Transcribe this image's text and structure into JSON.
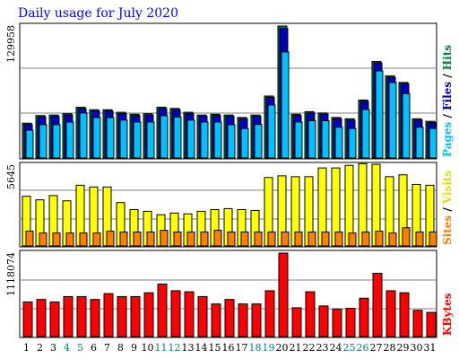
{
  "chart_data": {
    "type": "bar",
    "title": "Daily usage for July 2020",
    "categories": [
      "1",
      "2",
      "3",
      "4",
      "5",
      "6",
      "7",
      "8",
      "9",
      "10",
      "11",
      "12",
      "13",
      "14",
      "15",
      "16",
      "17",
      "18",
      "19",
      "20",
      "21",
      "22",
      "23",
      "24",
      "25",
      "26",
      "27",
      "28",
      "29",
      "30",
      "31"
    ],
    "weekend_days": [
      "4",
      "5",
      "11",
      "12",
      "18",
      "19",
      "25",
      "26"
    ],
    "panels": [
      {
        "id": "hits",
        "ymax_label": "129958",
        "ymax": 129958,
        "legend": [
          {
            "text": "Hits",
            "color": "#008040"
          },
          {
            "text": " / ",
            "color": "#000000"
          },
          {
            "text": "Files",
            "color": "#0000c0"
          },
          {
            "text": " / ",
            "color": "#000000"
          },
          {
            "text": "Pages",
            "color": "#00c0ff"
          }
        ],
        "series": [
          {
            "name": "Hits",
            "color": "#008040",
            "values": [
              34300,
              41800,
              42300,
              43600,
              50000,
              47500,
              47500,
              45000,
              43100,
              43600,
              50000,
              48800,
              45000,
              42300,
              43100,
              42300,
              39900,
              42300,
              61000,
              129958,
              43100,
              45600,
              44300,
              39900,
              38600,
              57100,
              95000,
              80800,
              74400,
              38600,
              36100
            ]
          },
          {
            "name": "Files",
            "color": "#0000c0",
            "values": [
              33000,
              40500,
              41000,
              42300,
              48700,
              46200,
              46200,
              43700,
              41800,
              42300,
              48700,
              47500,
              43700,
              41000,
              41800,
              41000,
              38600,
              41000,
              59700,
              127700,
              41800,
              44300,
              43100,
              38600,
              37300,
              55800,
              93600,
              79500,
              73100,
              37300,
              34800
            ]
          },
          {
            "name": "Pages",
            "color": "#00c0ff",
            "values": [
              27300,
              32800,
              32800,
              35400,
              44300,
              39800,
              39800,
              37300,
              35400,
              35400,
              41700,
              40400,
              37300,
              35400,
              35400,
              32800,
              29000,
              33000,
              52200,
              104400,
              35400,
              36700,
              36700,
              30300,
              29000,
              47700,
              85700,
              74300,
              63400,
              30300,
              29000
            ]
          }
        ]
      },
      {
        "id": "visits",
        "ymax_label": "5645",
        "ymax": 5645,
        "legend": [
          {
            "text": "Visits",
            "color": "#e0e000"
          },
          {
            "text": " / ",
            "color": "#000000"
          },
          {
            "text": "Sites",
            "color": "#ff8000"
          }
        ],
        "series": [
          {
            "name": "Visits",
            "color": "#ffff00",
            "values": [
              3470,
              3220,
              3520,
              3150,
              4240,
              4120,
              4120,
              3030,
              2540,
              2420,
              2180,
              2300,
              2240,
              2420,
              2540,
              2610,
              2540,
              2480,
              4780,
              4900,
              4840,
              4840,
              5450,
              5450,
              5630,
              5750,
              5700,
              4840,
              4970,
              4300,
              4240
            ]
          },
          {
            "name": "Sites",
            "color": "#ff8000",
            "values": [
              1030,
              900,
              900,
              900,
              900,
              900,
              1030,
              970,
              970,
              970,
              1090,
              970,
              970,
              970,
              1090,
              970,
              970,
              970,
              970,
              970,
              970,
              970,
              970,
              970,
              900,
              970,
              1030,
              900,
              1270,
              970,
              970
            ]
          }
        ]
      },
      {
        "id": "kbytes",
        "ymax_label": "1118074",
        "ymax": 1118074,
        "legend": [
          {
            "text": "KBytes",
            "color": "#ff0000"
          }
        ],
        "series": [
          {
            "name": "KBytes",
            "color": "#ff0000",
            "values": [
              464000,
              497000,
              464000,
              536000,
              536000,
              497000,
              575000,
              536000,
              536000,
              587000,
              704000,
              614000,
              600000,
              536000,
              437000,
              497000,
              437000,
              437000,
              614000,
              1118074,
              386000,
              600000,
              410000,
              369000,
              378000,
              514000,
              848000,
              614000,
              587000,
              352000,
              324000
            ]
          }
        ]
      }
    ]
  }
}
